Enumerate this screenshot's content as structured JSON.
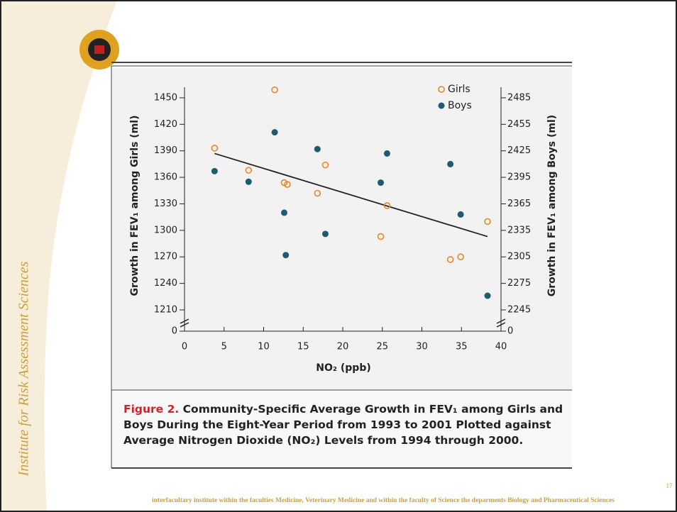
{
  "slide": {
    "side_text": "Institute for Risk Assessment Sciences",
    "footer": "interfacultary institute within the faculties Medicine, Veterinary Medicine and within the faculty of Science the deparments Biology and Pharmaceutical Sciences",
    "page_number": "17"
  },
  "chart_data": {
    "type": "scatter",
    "x_label": "NO₂ (ppb)",
    "y_label": "Growth in FEV₁ among Girls (ml)",
    "y2_label": "Growth in FEV₁ among Boys (ml)",
    "xlim": [
      0,
      40
    ],
    "xticks": [
      0,
      5,
      10,
      15,
      20,
      25,
      30,
      35,
      40
    ],
    "ylim": [
      0,
      1470
    ],
    "yticks": [
      0,
      1210,
      1240,
      1270,
      1300,
      1330,
      1360,
      1390,
      1420,
      1450
    ],
    "y2lim": [
      0,
      2505
    ],
    "y2ticks": [
      0,
      2245,
      2275,
      2305,
      2335,
      2365,
      2395,
      2425,
      2455,
      2485
    ],
    "axis_break": true,
    "legend": "top-right",
    "series": [
      {
        "name": "Girls",
        "color": "#e8862a",
        "marker": "open",
        "x": [
          3.8,
          8.1,
          11.4,
          12.6,
          13.0,
          16.8,
          17.8,
          24.8,
          25.6,
          33.6,
          34.9,
          38.3
        ],
        "values": [
          1393,
          1368,
          1459,
          1354,
          1352,
          1342,
          1374,
          1293,
          1328,
          1267,
          1270,
          1310
        ]
      },
      {
        "name": "Boys",
        "color": "#1f5a73",
        "marker": "filled",
        "axis": "y2",
        "x": [
          3.8,
          8.1,
          11.4,
          12.6,
          12.8,
          16.8,
          17.8,
          24.8,
          25.6,
          33.6,
          34.9,
          38.3
        ],
        "values": [
          2402,
          2390,
          2446,
          2355,
          2307,
          2427,
          2331,
          2389,
          2422,
          2410,
          2353,
          2261
        ]
      }
    ],
    "trendline": {
      "color": "#222222",
      "x": [
        3.8,
        38.3
      ],
      "values": [
        1387,
        1293
      ]
    },
    "caption": {
      "label": "Figure 2.",
      "text": "Community-Specific Average Growth in FEV₁ among Girls and Boys During the Eight-Year Period from 1993 to 2001 Plotted against Average Nitrogen Dioxide (NO₂) Levels from 1994 through 2000."
    }
  }
}
